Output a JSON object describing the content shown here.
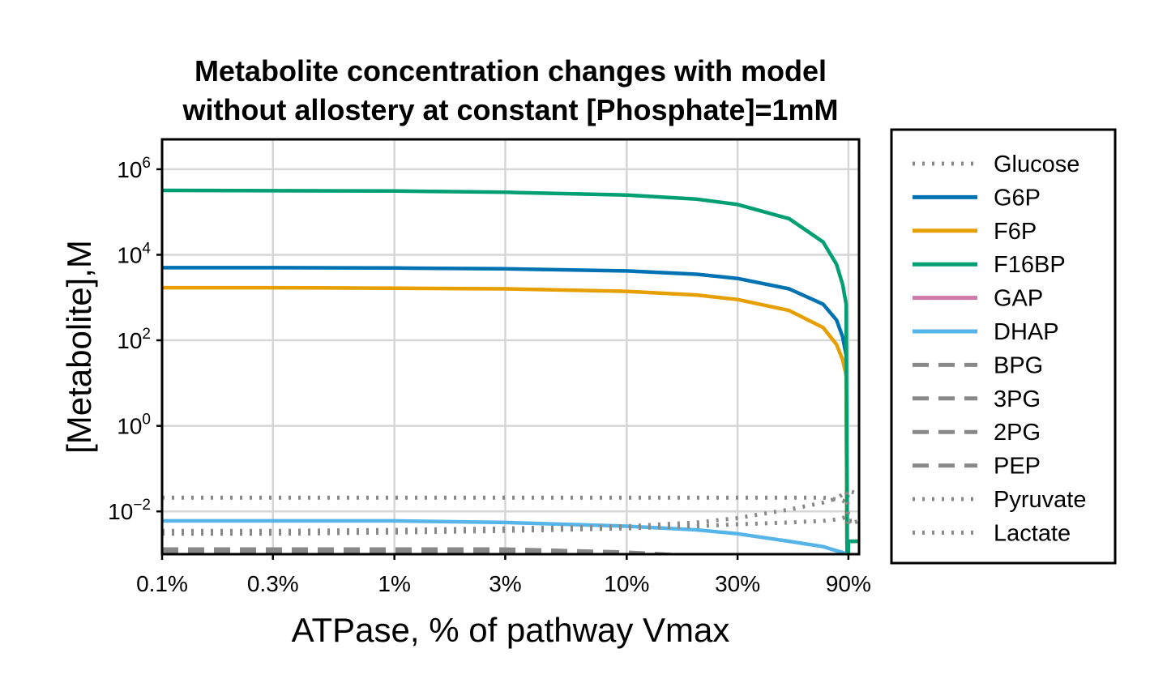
{
  "chart_data": {
    "type": "line",
    "title_lines": [
      "Metabolite concentration changes with model",
      "without allostery at constant [Phosphate]=1mM"
    ],
    "xlabel": "ATPase, % of pathway Vmax",
    "ylabel": "[Metabolite],M",
    "x_scale": "log",
    "y_scale": "log",
    "xlim": [
      0.1,
      100
    ],
    "ylim": [
      0.001,
      5000000
    ],
    "grid": true,
    "legend_position": "outside-right",
    "x_ticks": [
      {
        "value": 0.1,
        "label": "0.1%"
      },
      {
        "value": 0.3,
        "label": "0.3%"
      },
      {
        "value": 1,
        "label": "1%"
      },
      {
        "value": 3,
        "label": "3%"
      },
      {
        "value": 10,
        "label": "10%"
      },
      {
        "value": 30,
        "label": "30%"
      },
      {
        "value": 90,
        "label": "90%"
      }
    ],
    "y_ticks": [
      {
        "value": 1000000,
        "base": "10",
        "exp": "6"
      },
      {
        "value": 10000,
        "base": "10",
        "exp": "4"
      },
      {
        "value": 100,
        "base": "10",
        "exp": "2"
      },
      {
        "value": 1,
        "base": "10",
        "exp": "0"
      },
      {
        "value": 0.01,
        "base": "10",
        "exp": "−2"
      }
    ],
    "x": [
      0.1,
      0.3,
      1,
      3,
      10,
      20,
      30,
      50,
      70,
      80,
      85,
      88,
      89,
      90,
      100
    ],
    "series": [
      {
        "name": "Glucose",
        "color": "#888888",
        "style": "dotted",
        "values": [
          0.021,
          0.021,
          0.021,
          0.021,
          0.021,
          0.021,
          0.021,
          0.021,
          0.021,
          0.019,
          0.018,
          0.016,
          0.02,
          0.03,
          0.026
        ]
      },
      {
        "name": "G6P",
        "color": "#0072B2",
        "style": "solid",
        "values": [
          5000,
          5000,
          4900,
          4700,
          4200,
          3500,
          2800,
          1600,
          700,
          300,
          120,
          45,
          0.0001,
          0.002,
          0.002
        ]
      },
      {
        "name": "F6P",
        "color": "#E69F00",
        "style": "solid",
        "values": [
          1700,
          1700,
          1650,
          1600,
          1400,
          1150,
          900,
          500,
          200,
          80,
          35,
          15,
          0.0001,
          0.002,
          0.002
        ]
      },
      {
        "name": "F16BP",
        "color": "#009E73",
        "style": "solid",
        "values": [
          320000,
          315000,
          310000,
          290000,
          250000,
          200000,
          150000,
          70000,
          20000,
          6000,
          2000,
          700,
          0.0001,
          0.002,
          0.002
        ]
      },
      {
        "name": "GAP",
        "color": "#CC79A7",
        "style": "solid",
        "values": [
          0.0001,
          0.0001,
          0.0001,
          0.0001,
          0.0001,
          0.0001,
          0.0001,
          0.0001,
          0.0001,
          0.0001,
          0.0001,
          0.0001,
          0.0001,
          0.0001,
          0.0001
        ]
      },
      {
        "name": "DHAP",
        "color": "#56B4E9",
        "style": "solid",
        "values": [
          0.006,
          0.006,
          0.006,
          0.0055,
          0.0045,
          0.0037,
          0.003,
          0.002,
          0.0015,
          0.0012,
          0.0011,
          0.001,
          0.0009,
          0.0008,
          0.0008
        ]
      },
      {
        "name": "BPG",
        "color": "#888888",
        "style": "dashed",
        "values": [
          0.0011,
          0.0011,
          0.0011,
          0.001,
          0.0009,
          0.0008,
          0.0007,
          0.0006,
          0.0005,
          0.0005,
          0.0005,
          0.0005,
          0.0005,
          0.0005,
          0.0005
        ]
      },
      {
        "name": "3PG",
        "color": "#888888",
        "style": "dashed",
        "values": [
          0.0013,
          0.0013,
          0.0013,
          0.0013,
          0.0011,
          0.0009,
          0.0008,
          0.0007,
          0.0006,
          0.0006,
          0.0006,
          0.0006,
          0.0006,
          0.0006,
          0.0006
        ]
      },
      {
        "name": "2PG",
        "color": "#888888",
        "style": "dashed",
        "values": [
          0.0012,
          0.0012,
          0.0012,
          0.0012,
          0.001,
          0.0009,
          0.0008,
          0.0007,
          0.0006,
          0.0006,
          0.0006,
          0.0006,
          0.0006,
          0.0006,
          0.0006
        ]
      },
      {
        "name": "PEP",
        "color": "#888888",
        "style": "dashed",
        "values": [
          0.00095,
          0.00095,
          0.00095,
          0.0009,
          0.0008,
          0.0007,
          0.0006,
          0.0005,
          0.0005,
          0.0005,
          0.0005,
          0.0005,
          0.0005,
          0.0005,
          0.0005
        ]
      },
      {
        "name": "Pyruvate",
        "color": "#888888",
        "style": "dotted",
        "values": [
          0.0035,
          0.0035,
          0.0037,
          0.004,
          0.0045,
          0.0055,
          0.007,
          0.011,
          0.016,
          0.02,
          0.025,
          0.03,
          0.02,
          0.005,
          0.006
        ]
      },
      {
        "name": "Lactate",
        "color": "#888888",
        "style": "dotted",
        "values": [
          0.003,
          0.003,
          0.0032,
          0.0035,
          0.004,
          0.0045,
          0.005,
          0.0055,
          0.006,
          0.0065,
          0.007,
          0.0075,
          0.007,
          0.006,
          0.0062
        ]
      }
    ]
  }
}
